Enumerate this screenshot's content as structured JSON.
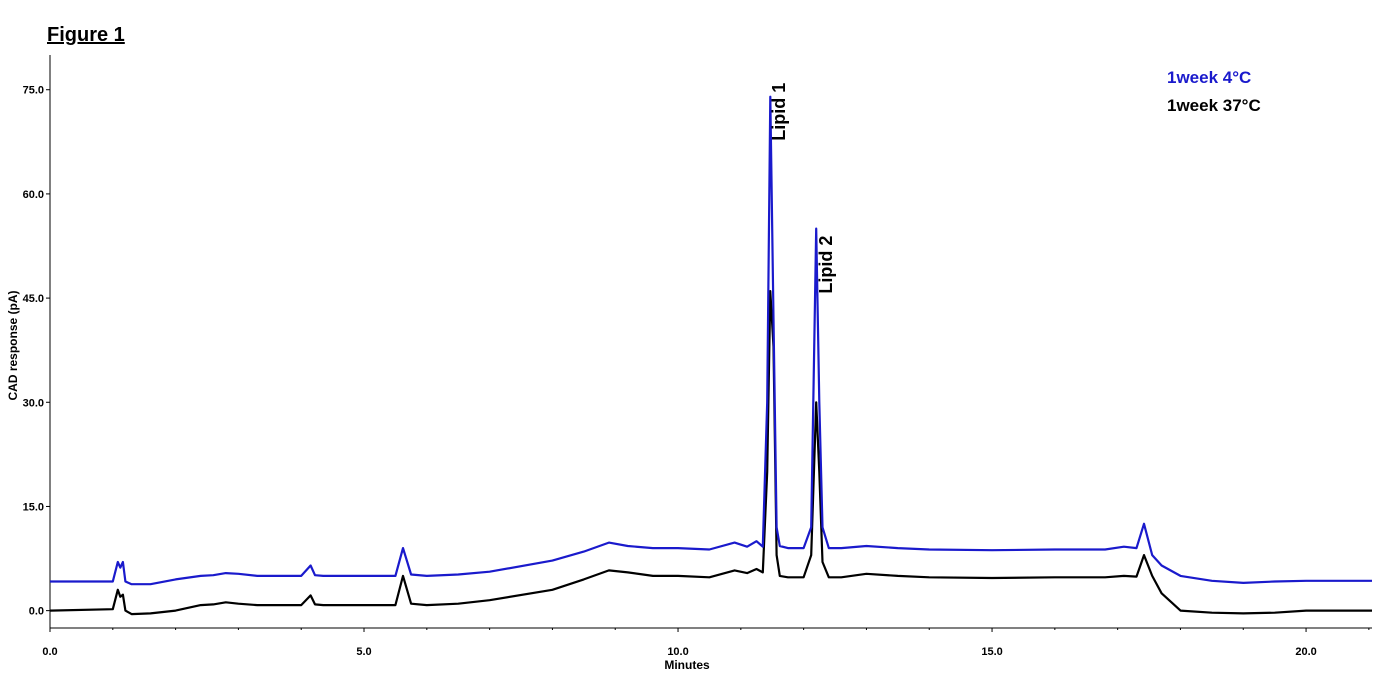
{
  "figure": {
    "title": "Figure 1"
  },
  "chart_data": {
    "type": "line",
    "title": "",
    "xlabel": "Minutes",
    "ylabel": "CAD response (pA)",
    "xlim": [
      0,
      21.05
    ],
    "ylim": [
      -2.5,
      80
    ],
    "xticks": [
      0,
      5,
      10,
      15,
      20
    ],
    "xtick_labels": [
      "0.0",
      "5.0",
      "10.0",
      "15.0",
      "20.0"
    ],
    "yticks": [
      0,
      15,
      30,
      45,
      60,
      75
    ],
    "ytick_labels": [
      "0.0",
      "15.0",
      "30.0",
      "45.0",
      "60.0",
      "75.0"
    ],
    "grid": false,
    "legend_position": "top-right",
    "annotations": [
      {
        "text": "Lipid 1",
        "x": 11.7,
        "y": 76
      },
      {
        "text": "Lipid 2",
        "x": 12.45,
        "y": 54
      }
    ],
    "series": [
      {
        "name": "1week 4°C",
        "color": "#1a1acc",
        "x": [
          0.0,
          1.0,
          1.08,
          1.12,
          1.16,
          1.2,
          1.3,
          1.6,
          2.0,
          2.4,
          2.6,
          2.8,
          3.0,
          3.3,
          4.0,
          4.15,
          4.22,
          4.35,
          5.0,
          5.5,
          5.62,
          5.75,
          6.0,
          6.5,
          7.0,
          8.0,
          8.5,
          8.9,
          9.2,
          9.6,
          10.0,
          10.5,
          10.9,
          11.1,
          11.25,
          11.35,
          11.42,
          11.47,
          11.52,
          11.57,
          11.62,
          11.75,
          12.0,
          12.12,
          12.2,
          12.25,
          12.3,
          12.4,
          12.6,
          13.0,
          13.5,
          14.0,
          15.0,
          16.0,
          16.8,
          17.1,
          17.3,
          17.42,
          17.55,
          17.7,
          18.0,
          18.5,
          19.0,
          19.5,
          20.0,
          21.05
        ],
        "y": [
          4.2,
          4.2,
          7.0,
          6.2,
          7.0,
          4.2,
          3.8,
          3.8,
          4.5,
          5.0,
          5.1,
          5.4,
          5.3,
          5.0,
          5.0,
          6.5,
          5.1,
          5.0,
          5.0,
          5.0,
          9.0,
          5.2,
          5.0,
          5.2,
          5.6,
          7.2,
          8.5,
          9.8,
          9.3,
          9.0,
          9.0,
          8.8,
          9.8,
          9.2,
          10.0,
          9.2,
          30.0,
          74.0,
          42.0,
          12.0,
          9.3,
          9.0,
          9.0,
          12.0,
          55.0,
          30.0,
          12.0,
          9.0,
          9.0,
          9.3,
          9.0,
          8.8,
          8.7,
          8.8,
          8.8,
          9.2,
          9.0,
          12.5,
          8.0,
          6.5,
          5.0,
          4.3,
          4.0,
          4.2,
          4.3,
          4.3
        ]
      },
      {
        "name": "1week 37°C",
        "color": "#000000",
        "x": [
          0.0,
          1.0,
          1.08,
          1.12,
          1.16,
          1.2,
          1.3,
          1.6,
          2.0,
          2.4,
          2.6,
          2.8,
          3.0,
          3.3,
          4.0,
          4.15,
          4.22,
          4.35,
          5.0,
          5.5,
          5.62,
          5.75,
          6.0,
          6.5,
          7.0,
          8.0,
          8.5,
          8.9,
          9.2,
          9.6,
          10.0,
          10.5,
          10.9,
          11.1,
          11.25,
          11.35,
          11.42,
          11.47,
          11.52,
          11.57,
          11.62,
          11.75,
          12.0,
          12.12,
          12.2,
          12.25,
          12.3,
          12.4,
          12.6,
          13.0,
          13.5,
          14.0,
          15.0,
          16.0,
          16.8,
          17.1,
          17.3,
          17.42,
          17.55,
          17.7,
          18.0,
          18.5,
          19.0,
          19.5,
          20.0,
          21.05
        ],
        "y": [
          0.0,
          0.2,
          3.0,
          2.0,
          2.3,
          0.0,
          -0.5,
          -0.4,
          0.0,
          0.8,
          0.9,
          1.2,
          1.0,
          0.8,
          0.8,
          2.2,
          0.9,
          0.8,
          0.8,
          0.8,
          5.0,
          1.0,
          0.8,
          1.0,
          1.5,
          3.0,
          4.5,
          5.8,
          5.5,
          5.0,
          5.0,
          4.8,
          5.8,
          5.4,
          6.0,
          5.5,
          20.0,
          46.0,
          38.0,
          8.0,
          5.0,
          4.8,
          4.8,
          8.0,
          30.0,
          20.0,
          7.0,
          4.8,
          4.8,
          5.3,
          5.0,
          4.8,
          4.7,
          4.8,
          4.8,
          5.0,
          4.9,
          8.0,
          5.0,
          2.5,
          0.0,
          -0.3,
          -0.4,
          -0.3,
          0.0,
          0.0
        ]
      }
    ]
  }
}
